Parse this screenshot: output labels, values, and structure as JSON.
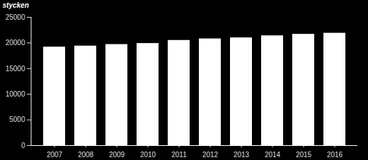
{
  "chart_data": {
    "type": "bar",
    "y_label": "stycken",
    "categories": [
      "2007",
      "2008",
      "2009",
      "2010",
      "2011",
      "2012",
      "2013",
      "2014",
      "2015",
      "2016"
    ],
    "values": [
      19200,
      19400,
      19700,
      19900,
      20500,
      20800,
      21000,
      21400,
      21700,
      21900
    ],
    "color": "#ffffff",
    "ylim": [
      0,
      25000
    ],
    "yticks": [
      0,
      5000,
      10000,
      15000,
      20000,
      25000
    ],
    "grid": false
  }
}
